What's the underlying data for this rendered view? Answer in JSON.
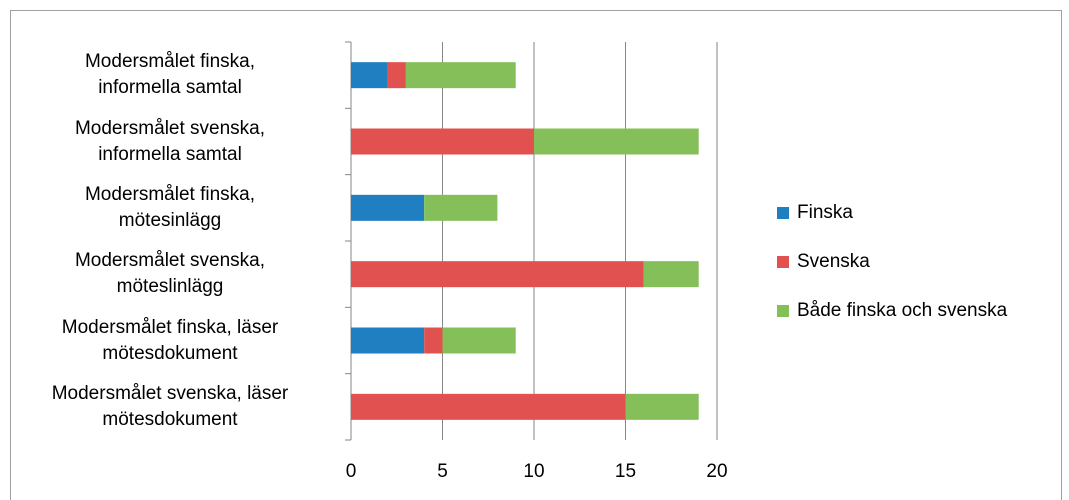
{
  "chart_data": {
    "type": "stacked_barh",
    "categories": [
      "Modersmålet finska,\ninformella samtal",
      "Modersmålet svenska,\ninformella samtal",
      "Modersmålet finska,\nmötesinlägg",
      "Modersmålet svenska,\nmöteslinlägg",
      "Modersmålet finska, läser\nmötesdokument",
      "Modersmålet svenska, läser\nmötesdokument"
    ],
    "series": [
      {
        "name": "Finska",
        "color": "#1f7fc1",
        "values": [
          2,
          0,
          4,
          0,
          4,
          0
        ]
      },
      {
        "name": "Svenska",
        "color": "#e0514f",
        "values": [
          1,
          10,
          0,
          16,
          1,
          15
        ]
      },
      {
        "name": "Både finska och svenska",
        "color": "#84bf5a",
        "values": [
          6,
          9,
          4,
          3,
          4,
          4
        ]
      }
    ],
    "xlim": [
      0,
      20
    ],
    "xticks": [
      0,
      5,
      10,
      15,
      20
    ],
    "grid": true,
    "legend": "right"
  }
}
